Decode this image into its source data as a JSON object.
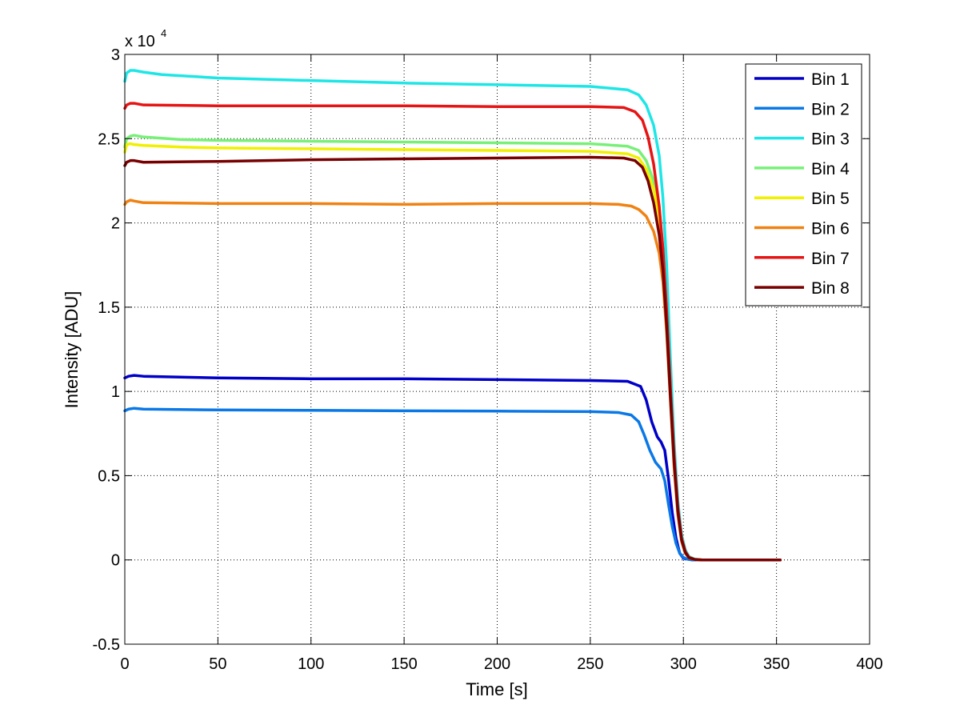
{
  "chart_data": {
    "type": "line",
    "title": "",
    "xlabel": "Time [s]",
    "ylabel": "Intensity [ADU]",
    "y_exponent_label": "x 10",
    "y_exponent_power": "4",
    "xlim": [
      0,
      400
    ],
    "ylim": [
      -5000,
      30000
    ],
    "x_ticks": [
      0,
      50,
      100,
      150,
      200,
      250,
      300,
      350,
      400
    ],
    "x_tick_labels": [
      "0",
      "50",
      "100",
      "150",
      "200",
      "250",
      "300",
      "350",
      "400"
    ],
    "y_ticks": [
      -5000,
      0,
      5000,
      10000,
      15000,
      20000,
      25000,
      30000
    ],
    "y_tick_labels": [
      "-0.5",
      "0",
      "0.5",
      "1",
      "1.5",
      "2",
      "2.5",
      "3"
    ],
    "grid": true,
    "legend_position": "top-right",
    "series": [
      {
        "name": "Bin 1",
        "color": "#0000c8",
        "x": [
          0,
          2,
          5,
          10,
          50,
          100,
          150,
          200,
          250,
          270,
          277,
          280,
          283,
          286,
          288,
          290,
          292,
          294,
          296,
          298,
          300,
          302,
          305,
          310,
          320,
          352
        ],
        "y": [
          10800,
          10900,
          10950,
          10900,
          10800,
          10750,
          10750,
          10700,
          10650,
          10600,
          10300,
          9500,
          8200,
          7300,
          7000,
          6500,
          4800,
          2800,
          1300,
          400,
          100,
          50,
          0,
          0,
          0,
          0
        ]
      },
      {
        "name": "Bin 2",
        "color": "#0a78e6",
        "x": [
          0,
          2,
          5,
          10,
          50,
          100,
          150,
          200,
          250,
          265,
          272,
          276,
          279,
          282,
          285,
          288,
          290,
          292,
          294,
          296,
          298,
          300,
          302,
          305,
          310,
          320,
          352
        ],
        "y": [
          8850,
          8950,
          9000,
          8950,
          8900,
          8880,
          8850,
          8830,
          8800,
          8750,
          8600,
          8200,
          7400,
          6500,
          5800,
          5400,
          4700,
          3300,
          2000,
          1000,
          400,
          150,
          50,
          0,
          0,
          0,
          0
        ]
      },
      {
        "name": "Bin 3",
        "color": "#1ee6e6",
        "x": [
          0,
          1,
          3,
          5,
          10,
          20,
          50,
          100,
          150,
          200,
          250,
          270,
          276,
          280,
          284,
          287,
          289,
          291,
          293,
          295,
          297,
          299,
          301,
          303,
          306,
          310,
          320,
          352
        ],
        "y": [
          28400,
          28900,
          29050,
          29050,
          28950,
          28800,
          28600,
          28450,
          28300,
          28200,
          28100,
          27900,
          27600,
          27000,
          25800,
          24000,
          21500,
          17500,
          12000,
          7000,
          3500,
          1500,
          600,
          200,
          50,
          0,
          0,
          0
        ]
      },
      {
        "name": "Bin 4",
        "color": "#78f078",
        "x": [
          0,
          1,
          3,
          5,
          10,
          30,
          50,
          100,
          150,
          200,
          250,
          270,
          276,
          280,
          284,
          287,
          289,
          291,
          293,
          295,
          297,
          299,
          301,
          303,
          306,
          310,
          320,
          352
        ],
        "y": [
          24500,
          25000,
          25150,
          25200,
          25100,
          24950,
          24900,
          24850,
          24800,
          24750,
          24700,
          24550,
          24300,
          23700,
          22500,
          20800,
          18500,
          14800,
          10200,
          6000,
          3000,
          1300,
          500,
          150,
          30,
          0,
          0,
          0
        ]
      },
      {
        "name": "Bin 5",
        "color": "#f0f000",
        "x": [
          0,
          1,
          3,
          5,
          10,
          30,
          50,
          100,
          150,
          200,
          250,
          270,
          276,
          280,
          284,
          287,
          289,
          291,
          293,
          295,
          297,
          299,
          301,
          303,
          306,
          310,
          320,
          352
        ],
        "y": [
          24200,
          24650,
          24700,
          24650,
          24600,
          24500,
          24450,
          24400,
          24350,
          24300,
          24250,
          24100,
          23850,
          23200,
          22000,
          20300,
          18000,
          14300,
          9800,
          5700,
          2800,
          1200,
          450,
          150,
          30,
          0,
          0,
          0
        ]
      },
      {
        "name": "Bin 6",
        "color": "#f08214",
        "x": [
          0,
          1,
          3,
          5,
          10,
          50,
          100,
          150,
          200,
          250,
          265,
          272,
          276,
          280,
          284,
          287,
          289,
          291,
          293,
          295,
          297,
          299,
          301,
          303,
          306,
          310,
          320,
          352
        ],
        "y": [
          21100,
          21250,
          21350,
          21300,
          21200,
          21150,
          21150,
          21100,
          21150,
          21150,
          21100,
          21000,
          20800,
          20400,
          19500,
          18200,
          16500,
          13500,
          9500,
          5500,
          2700,
          1100,
          400,
          120,
          30,
          0,
          0,
          0
        ]
      },
      {
        "name": "Bin 7",
        "color": "#e61414",
        "x": [
          0,
          1,
          3,
          5,
          10,
          50,
          100,
          150,
          200,
          250,
          268,
          274,
          278,
          281,
          284,
          287,
          289,
          291,
          293,
          295,
          297,
          299,
          301,
          303,
          306,
          310,
          320,
          352
        ],
        "y": [
          26800,
          27000,
          27100,
          27100,
          27000,
          26950,
          26950,
          26950,
          26900,
          26900,
          26850,
          26600,
          26100,
          25100,
          23500,
          21000,
          18500,
          14800,
          10300,
          6200,
          3100,
          1300,
          500,
          150,
          30,
          0,
          0,
          0
        ]
      },
      {
        "name": "Bin 8",
        "color": "#780000",
        "x": [
          0,
          1,
          3,
          5,
          10,
          50,
          100,
          150,
          200,
          250,
          268,
          274,
          278,
          281,
          284,
          287,
          289,
          291,
          293,
          295,
          297,
          299,
          301,
          303,
          306,
          310,
          320,
          352
        ],
        "y": [
          23400,
          23600,
          23700,
          23700,
          23600,
          23650,
          23750,
          23800,
          23850,
          23900,
          23850,
          23700,
          23300,
          22500,
          21200,
          19300,
          17200,
          13900,
          9700,
          5800,
          2900,
          1200,
          450,
          130,
          30,
          0,
          0,
          0
        ]
      }
    ]
  }
}
